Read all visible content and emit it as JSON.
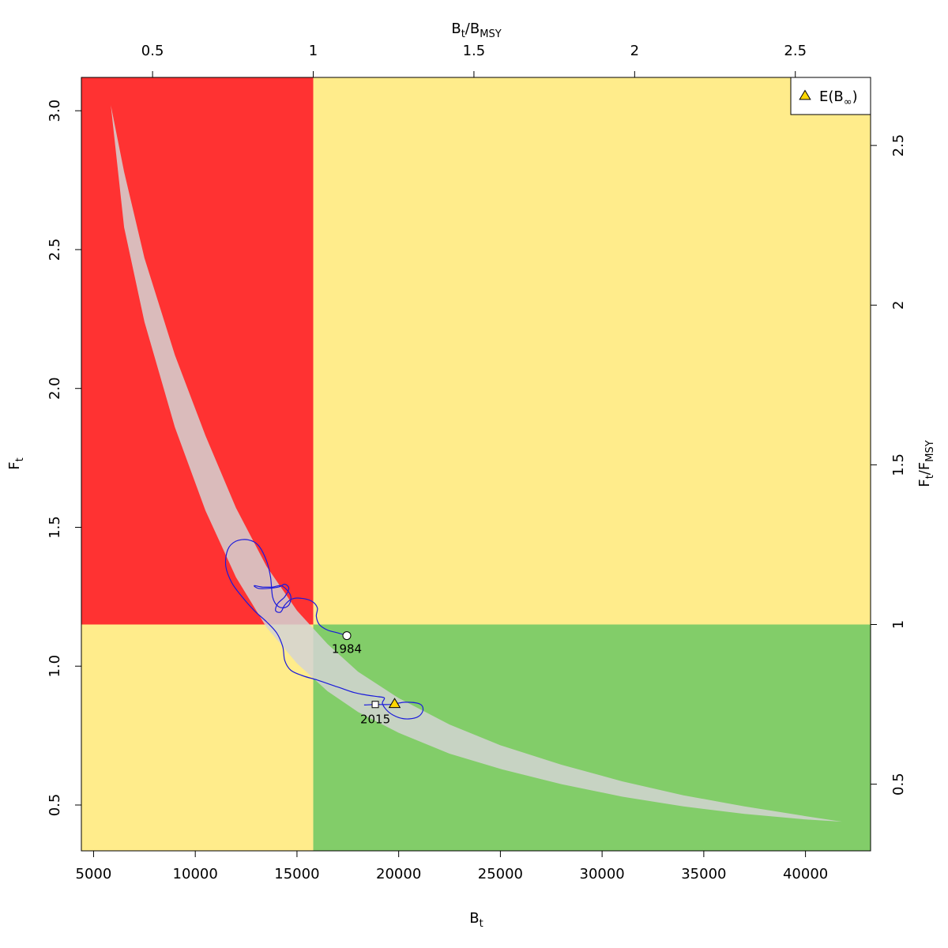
{
  "chart_data": {
    "type": "scatter",
    "xlabel": {
      "main": "B",
      "sub": "t"
    },
    "ylabel": {
      "main": "F",
      "sub": "t"
    },
    "x2label": {
      "main1": "B",
      "sub1": "t",
      "sep": "/",
      "main2": "B",
      "sub2": "MSY"
    },
    "y2label": {
      "main1": "F",
      "sub1": "t",
      "sep": "/",
      "main2": "F",
      "sub2": "MSY"
    },
    "xlim": [
      4400,
      43200
    ],
    "ylim": [
      0.335,
      3.12
    ],
    "x_ticks": [
      5000,
      10000,
      15000,
      20000,
      25000,
      30000,
      35000,
      40000
    ],
    "y_ticks": [
      0.5,
      1.0,
      1.5,
      2.0,
      2.5,
      3.0
    ],
    "x2_ticks": [
      {
        "value": 0.5,
        "label": "0.5"
      },
      {
        "value": 1,
        "label": "1"
      },
      {
        "value": 1.5,
        "label": "1.5"
      },
      {
        "value": 2,
        "label": "2"
      },
      {
        "value": 2.5,
        "label": "2.5"
      }
    ],
    "y2_ticks": [
      {
        "value": 0.5,
        "label": "0.5"
      },
      {
        "value": 1,
        "label": "1"
      },
      {
        "value": 1.5,
        "label": "1.5"
      },
      {
        "value": 2,
        "label": "2"
      },
      {
        "value": 2.5,
        "label": "2.5"
      }
    ],
    "Bmsy": 15800,
    "Fmsy": 1.15,
    "zones": [
      {
        "name": "overfished-overfishing",
        "color": "#ff3232"
      },
      {
        "name": "healthy-overfishing",
        "color": "#ffec8b"
      },
      {
        "name": "overfished-no-overfishing",
        "color": "#ffec8b"
      },
      {
        "name": "healthy",
        "color": "#82cd69"
      }
    ],
    "envelope": {
      "color": "#d3d3d3",
      "opacity": 0.85,
      "upper": [
        [
          5850,
          3.02
        ],
        [
          6500,
          2.78
        ],
        [
          7500,
          2.47
        ],
        [
          9000,
          2.12
        ],
        [
          10500,
          1.83
        ],
        [
          12000,
          1.57
        ],
        [
          13500,
          1.36
        ],
        [
          15000,
          1.2
        ],
        [
          16500,
          1.08
        ],
        [
          18000,
          0.98
        ],
        [
          20000,
          0.885
        ],
        [
          22500,
          0.79
        ],
        [
          25000,
          0.715
        ],
        [
          28000,
          0.645
        ],
        [
          31000,
          0.585
        ],
        [
          34000,
          0.535
        ],
        [
          37000,
          0.495
        ],
        [
          40000,
          0.46
        ],
        [
          41800,
          0.44
        ]
      ],
      "lower": [
        [
          41800,
          0.44
        ],
        [
          40000,
          0.448
        ],
        [
          37000,
          0.468
        ],
        [
          34000,
          0.495
        ],
        [
          31000,
          0.53
        ],
        [
          28000,
          0.575
        ],
        [
          25000,
          0.63
        ],
        [
          22500,
          0.685
        ],
        [
          20000,
          0.76
        ],
        [
          18000,
          0.835
        ],
        [
          16500,
          0.91
        ],
        [
          15000,
          1.01
        ],
        [
          13500,
          1.14
        ],
        [
          12000,
          1.32
        ],
        [
          10500,
          1.56
        ],
        [
          9000,
          1.86
        ],
        [
          7500,
          2.24
        ],
        [
          6500,
          2.58
        ],
        [
          5850,
          3.02
        ]
      ]
    },
    "trajectory": {
      "color": "#1a1adb",
      "points": [
        [
          17450,
          1.11
        ],
        [
          17000,
          1.12
        ],
        [
          16500,
          1.13
        ],
        [
          16100,
          1.15
        ],
        [
          15950,
          1.18
        ],
        [
          16000,
          1.21
        ],
        [
          15700,
          1.235
        ],
        [
          15100,
          1.245
        ],
        [
          14700,
          1.24
        ],
        [
          14400,
          1.22
        ],
        [
          14200,
          1.195
        ],
        [
          13950,
          1.2
        ],
        [
          14050,
          1.225
        ],
        [
          14400,
          1.25
        ],
        [
          14600,
          1.28
        ],
        [
          14400,
          1.295
        ],
        [
          14100,
          1.285
        ],
        [
          13600,
          1.28
        ],
        [
          13100,
          1.28
        ],
        [
          12900,
          1.29
        ],
        [
          13300,
          1.285
        ],
        [
          13800,
          1.285
        ],
        [
          14200,
          1.29
        ],
        [
          14500,
          1.275
        ],
        [
          14700,
          1.25
        ],
        [
          14600,
          1.22
        ],
        [
          14300,
          1.21
        ],
        [
          14000,
          1.22
        ],
        [
          13800,
          1.25
        ],
        [
          13700,
          1.32
        ],
        [
          13500,
          1.38
        ],
        [
          13100,
          1.435
        ],
        [
          12600,
          1.455
        ],
        [
          12000,
          1.45
        ],
        [
          11600,
          1.42
        ],
        [
          11500,
          1.36
        ],
        [
          11800,
          1.3
        ],
        [
          12300,
          1.25
        ],
        [
          12900,
          1.2
        ],
        [
          13500,
          1.16
        ],
        [
          14000,
          1.12
        ],
        [
          14300,
          1.07
        ],
        [
          14400,
          1.02
        ],
        [
          14700,
          0.985
        ],
        [
          15300,
          0.965
        ],
        [
          16000,
          0.95
        ],
        [
          17000,
          0.925
        ],
        [
          17800,
          0.905
        ],
        [
          18500,
          0.895
        ],
        [
          19000,
          0.89
        ],
        [
          19300,
          0.885
        ],
        [
          19200,
          0.865
        ],
        [
          19500,
          0.835
        ],
        [
          20000,
          0.815
        ],
        [
          20500,
          0.81
        ],
        [
          21000,
          0.82
        ],
        [
          21200,
          0.845
        ],
        [
          21000,
          0.865
        ],
        [
          20300,
          0.87
        ],
        [
          19600,
          0.862
        ],
        [
          18900,
          0.862
        ],
        [
          18300,
          0.86
        ]
      ]
    },
    "start_point": {
      "label": "1984",
      "x": 17450,
      "y": 1.11
    },
    "end_point": {
      "label": "2015",
      "x": 18850,
      "y": 0.862
    },
    "expected_point": {
      "x": 19800,
      "y": 0.865,
      "color": "#ffd700"
    },
    "legend": {
      "position": "top-right",
      "label_main": "E(B",
      "label_sub": "∞",
      "label_close": ")"
    }
  }
}
